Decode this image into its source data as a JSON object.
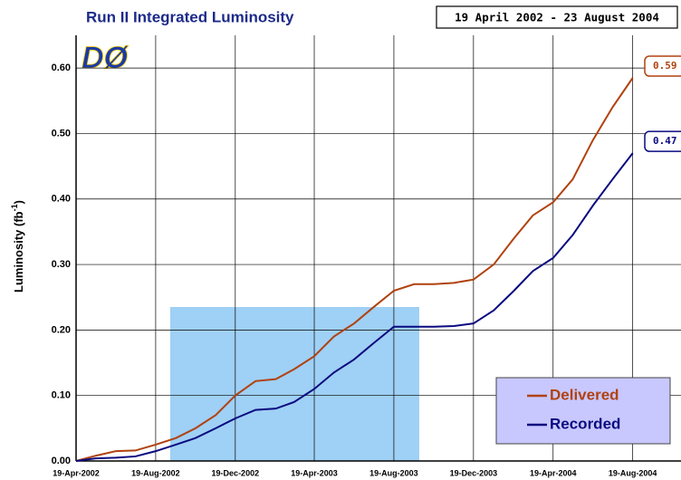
{
  "chart_data": {
    "type": "line",
    "title": "Run II Integrated Luminosity",
    "date_range": "19 April 2002 - 23 August 2004",
    "logo": "DØ",
    "ylabel": "Luminosity (fb",
    "ylabel_sup": "-1",
    "ylabel_end": ")",
    "x": [
      "2002-04-19",
      "2002-05-19",
      "2002-06-19",
      "2002-07-19",
      "2002-08-19",
      "2002-09-19",
      "2002-10-19",
      "2002-11-19",
      "2002-12-19",
      "2003-01-19",
      "2003-02-19",
      "2003-03-19",
      "2003-04-19",
      "2003-05-19",
      "2003-06-19",
      "2003-07-19",
      "2003-08-19",
      "2003-09-19",
      "2003-10-19",
      "2003-11-19",
      "2003-12-19",
      "2004-01-19",
      "2004-02-19",
      "2004-03-19",
      "2004-04-19",
      "2004-05-19",
      "2004-06-19",
      "2004-07-19",
      "2004-08-19"
    ],
    "series": [
      {
        "name": "Delivered",
        "color": "#b0420f",
        "end_label": "0.59",
        "values": [
          0,
          0.008,
          0.015,
          0.016,
          0.025,
          0.035,
          0.05,
          0.07,
          0.1,
          0.122,
          0.125,
          0.14,
          0.16,
          0.19,
          0.21,
          0.235,
          0.26,
          0.27,
          0.27,
          0.272,
          0.277,
          0.3,
          0.34,
          0.375,
          0.395,
          0.43,
          0.49,
          0.54,
          0.585
        ]
      },
      {
        "name": "Recorded",
        "color": "#0a0a80",
        "end_label": "0.47",
        "values": [
          0,
          0.004,
          0.005,
          0.007,
          0.015,
          0.025,
          0.035,
          0.05,
          0.065,
          0.078,
          0.08,
          0.09,
          0.11,
          0.135,
          0.155,
          0.18,
          0.205,
          0.205,
          0.205,
          0.206,
          0.21,
          0.23,
          0.26,
          0.29,
          0.31,
          0.345,
          0.39,
          0.43,
          0.47
        ]
      }
    ],
    "xlim": [
      "2002-04-19",
      "2004-11-01"
    ],
    "xticks": [
      {
        "value": "2002-04-19",
        "label": "19-Apr-2002"
      },
      {
        "value": "2002-08-19",
        "label": "19-Aug-2002"
      },
      {
        "value": "2002-12-19",
        "label": "19-Dec-2002"
      },
      {
        "value": "2003-04-19",
        "label": "19-Apr-2003"
      },
      {
        "value": "2003-08-19",
        "label": "19-Aug-2003"
      },
      {
        "value": "2003-12-19",
        "label": "19-Dec-2003"
      },
      {
        "value": "2004-04-19",
        "label": "19-Apr-2004"
      },
      {
        "value": "2004-08-19",
        "label": "19-Aug-2004"
      }
    ],
    "ylim": [
      0,
      0.65
    ],
    "yticks": [
      {
        "value": 0,
        "label": "0.00"
      },
      {
        "value": 0.1,
        "label": "0.10"
      },
      {
        "value": 0.2,
        "label": "0.20"
      },
      {
        "value": 0.3,
        "label": "0.30"
      },
      {
        "value": 0.4,
        "label": "0.40"
      },
      {
        "value": 0.5,
        "label": "0.50"
      },
      {
        "value": 0.6,
        "label": "0.60"
      }
    ],
    "grid": true
  }
}
